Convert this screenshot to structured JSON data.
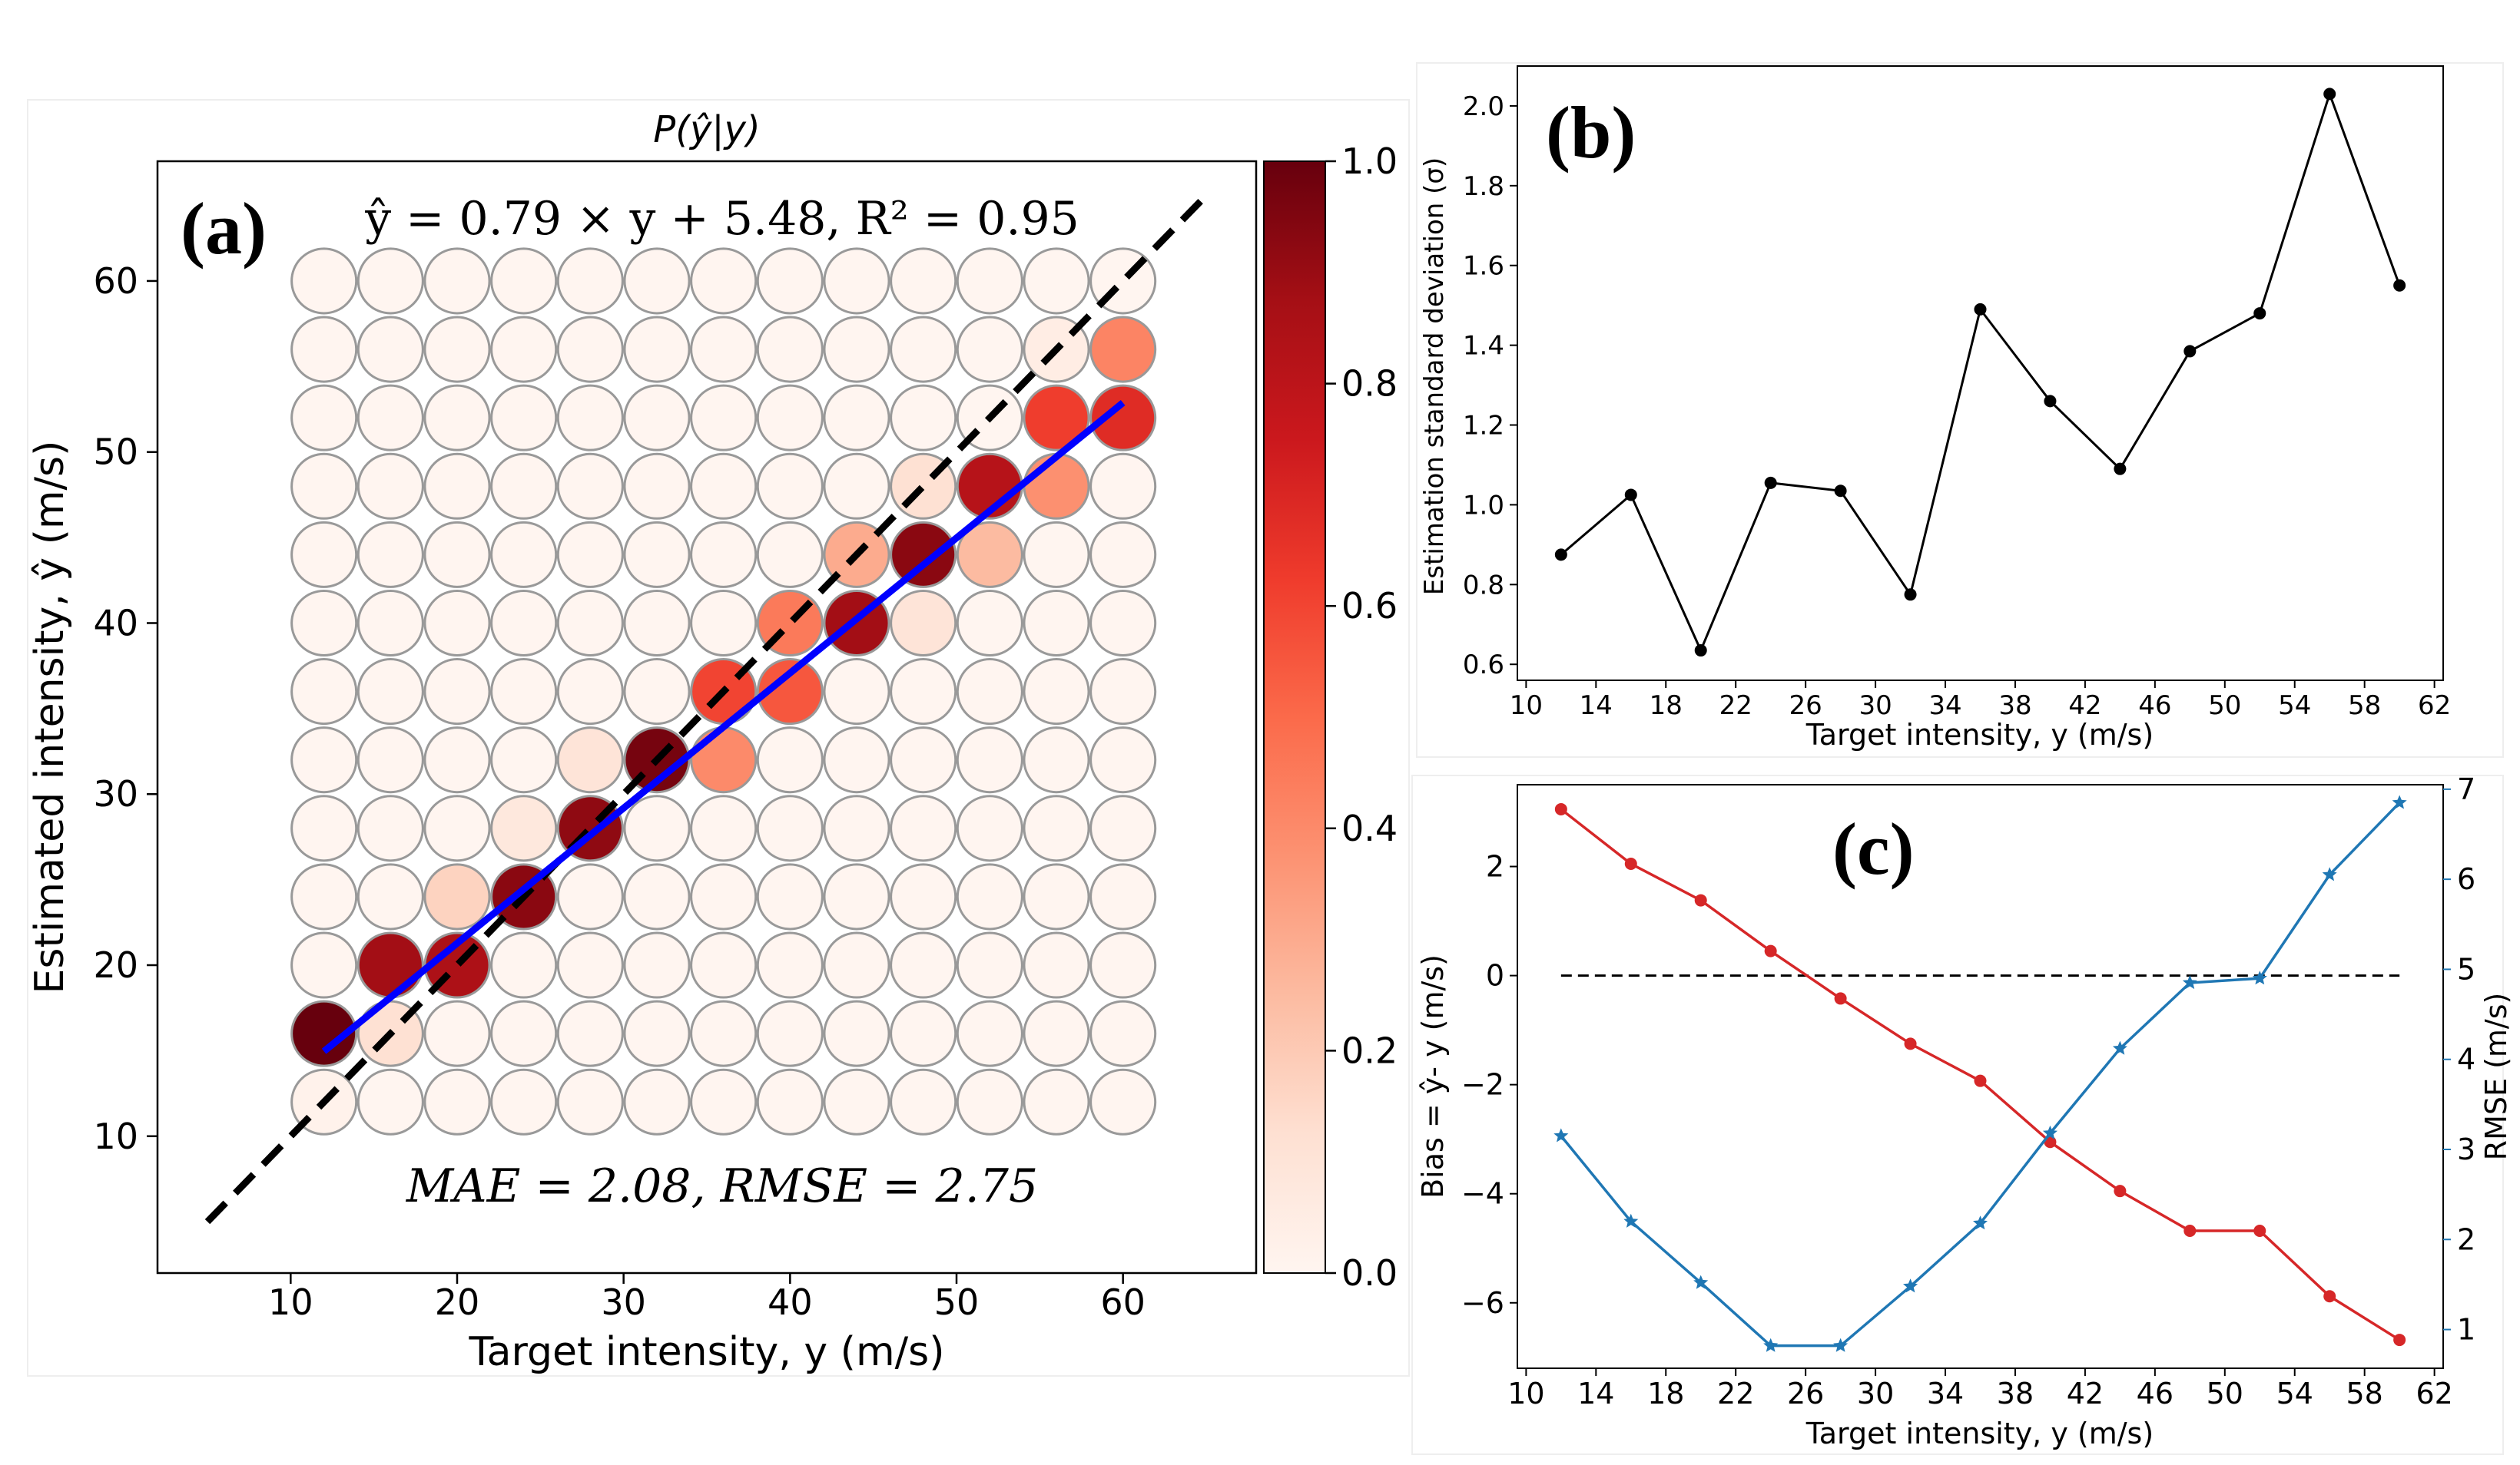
{
  "chart_data": [
    {
      "panel": "(a)",
      "type": "heatmap",
      "title": "P(ŷ|y)",
      "xlabel": "Target intensity, y (m/s)",
      "ylabel": "Estimated intensity, ŷ (m/s)",
      "equation": "ŷ = 0.79 × y + 5.48, R² = 0.95",
      "metrics": "MAE = 2.08, RMSE = 2.75",
      "x": [
        12,
        16,
        20,
        24,
        28,
        32,
        36,
        40,
        44,
        48,
        52,
        56,
        60
      ],
      "y": [
        12,
        16,
        20,
        24,
        28,
        32,
        36,
        40,
        44,
        48,
        52,
        56,
        60
      ],
      "xlim": [
        2,
        68
      ],
      "ylim": [
        2,
        67
      ],
      "xticks": [
        10,
        20,
        30,
        40,
        50,
        60
      ],
      "yticks": [
        10,
        20,
        30,
        40,
        50,
        60
      ],
      "colorbar": {
        "range": [
          0,
          1
        ],
        "ticks": [
          "0.0",
          "0.2",
          "0.4",
          "0.6",
          "0.8",
          "1.0"
        ],
        "colormap": "Reds"
      },
      "probability_cells": [
        {
          "x": 12,
          "y": 16,
          "p": 1.0
        },
        {
          "x": 12,
          "y": 12,
          "p": 0.02
        },
        {
          "x": 16,
          "y": 20,
          "p": 0.88
        },
        {
          "x": 16,
          "y": 16,
          "p": 0.12
        },
        {
          "x": 20,
          "y": 20,
          "p": 0.85
        },
        {
          "x": 20,
          "y": 24,
          "p": 0.17
        },
        {
          "x": 24,
          "y": 24,
          "p": 0.93
        },
        {
          "x": 24,
          "y": 28,
          "p": 0.08
        },
        {
          "x": 28,
          "y": 28,
          "p": 0.92
        },
        {
          "x": 28,
          "y": 32,
          "p": 0.1
        },
        {
          "x": 32,
          "y": 32,
          "p": 0.97
        },
        {
          "x": 36,
          "y": 36,
          "p": 0.6
        },
        {
          "x": 36,
          "y": 32,
          "p": 0.4
        },
        {
          "x": 40,
          "y": 40,
          "p": 0.45
        },
        {
          "x": 40,
          "y": 36,
          "p": 0.55
        },
        {
          "x": 44,
          "y": 40,
          "p": 0.88
        },
        {
          "x": 44,
          "y": 44,
          "p": 0.3
        },
        {
          "x": 48,
          "y": 44,
          "p": 0.93
        },
        {
          "x": 48,
          "y": 48,
          "p": 0.12
        },
        {
          "x": 48,
          "y": 40,
          "p": 0.1
        },
        {
          "x": 52,
          "y": 48,
          "p": 0.82
        },
        {
          "x": 52,
          "y": 44,
          "p": 0.25
        },
        {
          "x": 56,
          "y": 52,
          "p": 0.62
        },
        {
          "x": 56,
          "y": 48,
          "p": 0.38
        },
        {
          "x": 56,
          "y": 56,
          "p": 0.05
        },
        {
          "x": 60,
          "y": 52,
          "p": 0.68
        },
        {
          "x": 60,
          "y": 56,
          "p": 0.42
        }
      ],
      "series": [
        {
          "name": "1:1 line (dashed)",
          "x": [
            5,
            65
          ],
          "values": [
            5,
            65
          ]
        },
        {
          "name": "regression fit",
          "x": [
            12,
            60
          ],
          "values": [
            14.96,
            52.88
          ]
        }
      ]
    },
    {
      "panel": "(b)",
      "type": "line",
      "xlabel": "Target intensity, y (m/s)",
      "ylabel": "Estimation standard deviation (σ)",
      "x": [
        12,
        16,
        20,
        24,
        28,
        32,
        36,
        40,
        44,
        48,
        52,
        56,
        60
      ],
      "values": [
        0.875,
        1.025,
        0.635,
        1.055,
        1.035,
        0.775,
        1.49,
        1.26,
        1.09,
        1.385,
        1.48,
        2.03,
        1.55
      ],
      "xlim": [
        9.5,
        62.5
      ],
      "ylim": [
        0.56,
        2.1
      ],
      "xticks": [
        10,
        14,
        18,
        22,
        26,
        30,
        34,
        38,
        42,
        46,
        50,
        54,
        58,
        62
      ],
      "yticks": [
        0.6,
        0.8,
        1.0,
        1.2,
        1.4,
        1.6,
        1.8,
        2.0
      ]
    },
    {
      "panel": "(c)",
      "type": "line",
      "xlabel": "Target intensity, y (m/s)",
      "ylabel_left": "Bias =  ŷ- y (m/s)",
      "ylabel_right": "RMSE (m/s)",
      "x": [
        12,
        16,
        20,
        24,
        28,
        32,
        36,
        40,
        44,
        48,
        52,
        56,
        60
      ],
      "series": [
        {
          "name": "Bias",
          "axis": "left",
          "color": "#d62728",
          "values": [
            3.05,
            2.05,
            1.38,
            0.45,
            -0.42,
            -1.25,
            -1.93,
            -3.05,
            -3.95,
            -4.68,
            -4.68,
            -5.88,
            -6.68
          ]
        },
        {
          "name": "RMSE",
          "axis": "right",
          "color": "#1f77b4",
          "values": [
            3.15,
            2.2,
            1.52,
            0.82,
            0.82,
            1.48,
            2.18,
            3.18,
            4.12,
            4.85,
            4.9,
            6.05,
            6.85
          ]
        }
      ],
      "zero_line": {
        "x": [
          12,
          60
        ],
        "values": [
          0,
          0
        ]
      },
      "xlim": [
        9.5,
        62.5
      ],
      "ylim_left": [
        -7.2,
        3.5
      ],
      "ylim_right": [
        0.57,
        7.05
      ],
      "xticks": [
        10,
        14,
        18,
        22,
        26,
        30,
        34,
        38,
        42,
        46,
        50,
        54,
        58,
        62
      ],
      "yticks_left": [
        -6,
        -4,
        -2,
        0,
        2
      ],
      "yticks_right": [
        1,
        2,
        3,
        4,
        5,
        6,
        7
      ]
    }
  ],
  "colors": {
    "fit_line": "#0000ff",
    "dashed_line": "#000000",
    "bias": "#d62728",
    "rmse": "#1f77b4"
  }
}
